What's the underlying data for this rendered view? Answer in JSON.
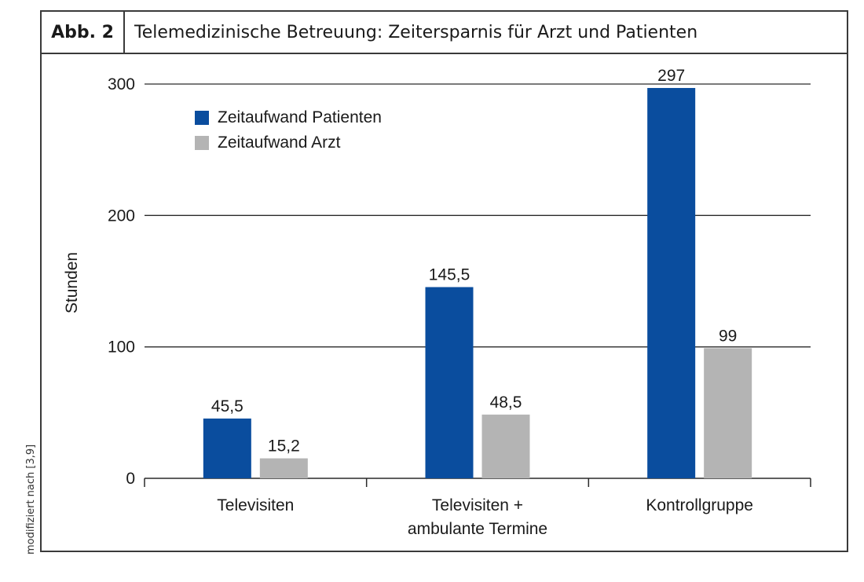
{
  "figure": {
    "label": "Abb. 2",
    "title": "Telemedizinische Betreuung: Zeitersparnis für Arzt und Patienten",
    "source_note": "modifiziert nach [3,9]"
  },
  "chart_data": {
    "type": "bar",
    "title": "Telemedizinische Betreuung: Zeitersparnis für Arzt und Patienten",
    "ylabel": "Stunden",
    "xlabel": "",
    "ylim": [
      0,
      300
    ],
    "yticks": [
      0,
      100,
      200,
      300
    ],
    "grid": true,
    "legend_position": "top-left",
    "categories": [
      [
        "Televisiten"
      ],
      [
        "Televisiten +",
        "ambulante Termine"
      ],
      [
        "Kontrollgruppe"
      ]
    ],
    "series": [
      {
        "name": "Zeitaufwand Patienten",
        "color": "#0a4d9e",
        "values": [
          45.5,
          145.5,
          297
        ],
        "labels": [
          "45,5",
          "145,5",
          "297"
        ]
      },
      {
        "name": "Zeitaufwand Arzt",
        "color": "#b4b4b4",
        "values": [
          15.2,
          48.5,
          99
        ],
        "labels": [
          "15,2",
          "48,5",
          "99"
        ]
      }
    ]
  }
}
